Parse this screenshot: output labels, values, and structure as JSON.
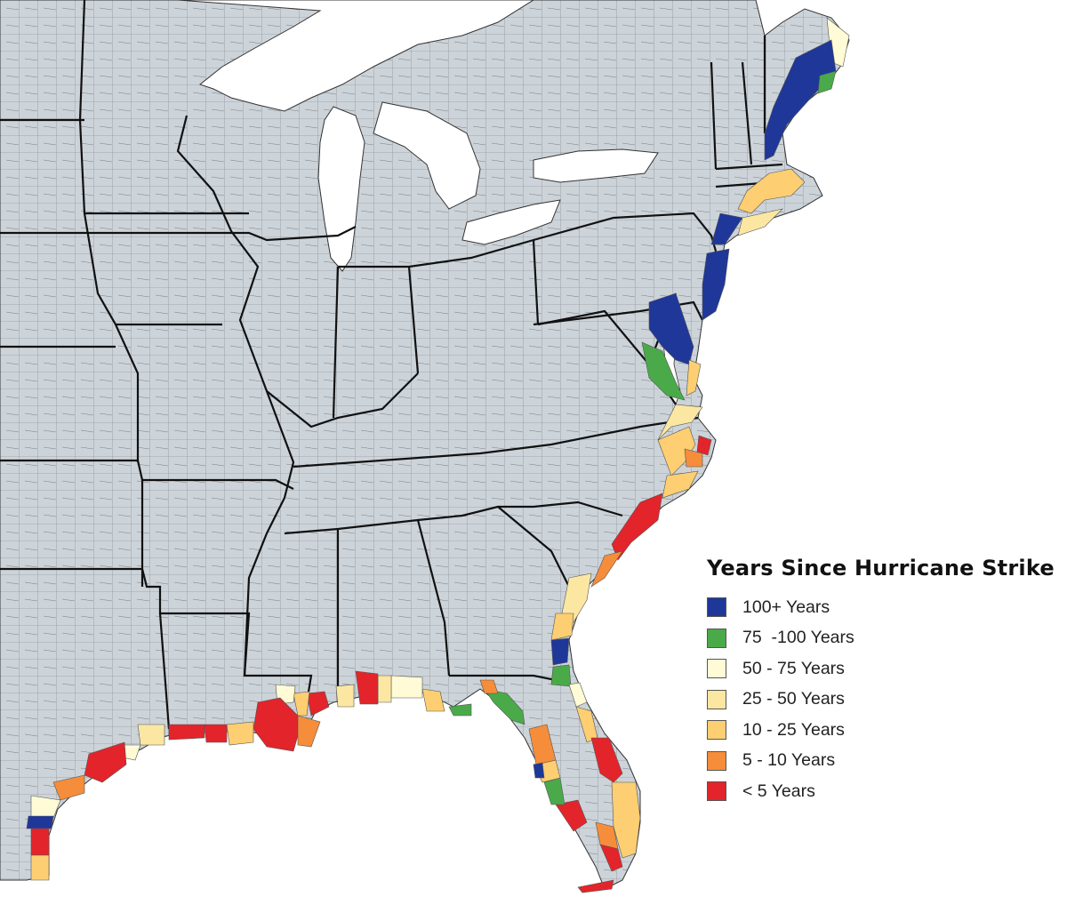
{
  "legend": {
    "title": "Years Since Hurricane Strike",
    "items": [
      {
        "label": "100+ Years",
        "color": "#1f3799"
      },
      {
        "label": "75  -100 Years",
        "color": "#4aaa4a"
      },
      {
        "label": "50 - 75 Years",
        "color": "#fefbd6"
      },
      {
        "label": "25 - 50 Years",
        "color": "#fbe7a2"
      },
      {
        "label": "10 - 25 Years",
        "color": "#fdce72"
      },
      {
        "label": "5 - 10 Years",
        "color": "#f68d3a"
      },
      {
        "label": "< 5 Years",
        "color": "#e3242b"
      }
    ]
  },
  "map": {
    "land_color": "#ccd3d9",
    "water_color": "#ffffff",
    "county_border_color": "#6e7478",
    "state_border_color": "#111111"
  }
}
